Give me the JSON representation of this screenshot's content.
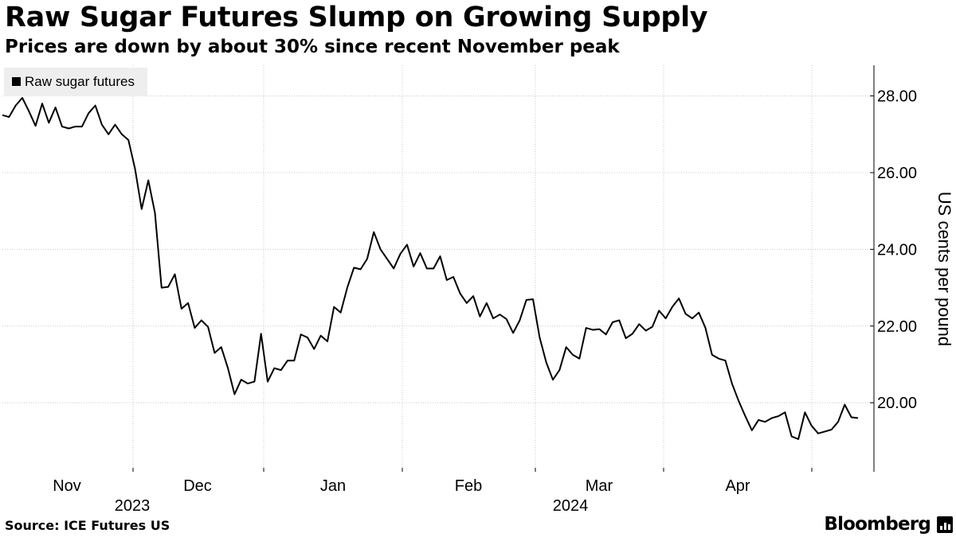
{
  "header": {
    "title": "Raw Sugar Futures Slump on Growing Supply",
    "subtitle": "Prices are down by about 30% since recent November peak"
  },
  "footer": {
    "source": "Source: ICE Futures US",
    "brand": "Bloomberg"
  },
  "chart_data": {
    "type": "line",
    "title": "Raw Sugar Futures Slump on Growing Supply",
    "subtitle": "Prices are down by about 30% since recent November peak",
    "xlabel": "",
    "ylabel": "US cents per pound",
    "yaxis_side": "right",
    "ylim": [
      18.2,
      28.8
    ],
    "yticks": [
      20.0,
      22.0,
      24.0,
      26.0,
      28.0
    ],
    "ytick_labels": [
      "20.00",
      "22.00",
      "24.00",
      "26.00",
      "28.00"
    ],
    "grid": true,
    "legend_position": "top-left",
    "x_range": [
      "2023-10-31",
      "2024-04-25"
    ],
    "month_ticks": [
      "Nov",
      "Dec",
      "Jan",
      "Feb",
      "Mar",
      "Apr"
    ],
    "year_labels": [
      "2023",
      "2024"
    ],
    "series": [
      {
        "name": "Raw sugar futures",
        "color": "#000000",
        "values": [
          27.5,
          27.45,
          27.75,
          27.95,
          27.6,
          27.22,
          27.8,
          27.3,
          27.7,
          27.2,
          27.15,
          27.2,
          27.2,
          27.55,
          27.75,
          27.25,
          27.0,
          27.25,
          27.0,
          26.85,
          26.1,
          25.05,
          25.8,
          24.95,
          23.0,
          23.02,
          23.35,
          22.45,
          22.6,
          21.95,
          22.15,
          21.98,
          21.3,
          21.45,
          20.9,
          20.22,
          20.6,
          20.5,
          20.55,
          21.8,
          20.55,
          20.9,
          20.85,
          21.1,
          21.1,
          21.78,
          21.7,
          21.4,
          21.75,
          21.6,
          22.5,
          22.35,
          23.0,
          23.52,
          23.48,
          23.75,
          24.45,
          24.0,
          23.75,
          23.5,
          23.88,
          24.12,
          23.55,
          23.9,
          23.5,
          23.5,
          23.82,
          23.2,
          23.28,
          22.85,
          22.6,
          22.78,
          22.25,
          22.6,
          22.2,
          22.3,
          22.18,
          21.82,
          22.15,
          22.68,
          22.7,
          21.7,
          21.05,
          20.6,
          20.85,
          21.45,
          21.25,
          21.15,
          21.95,
          21.9,
          21.92,
          21.78,
          22.1,
          22.15,
          21.68,
          21.8,
          22.05,
          21.88,
          21.98,
          22.4,
          22.2,
          22.5,
          22.72,
          22.32,
          22.2,
          22.35,
          21.95,
          21.25,
          21.15,
          21.1,
          20.5,
          20.05,
          19.65,
          19.28,
          19.55,
          19.5,
          19.6,
          19.65,
          19.75,
          19.12,
          19.05,
          19.75,
          19.4,
          19.2,
          19.25,
          19.3,
          19.5,
          19.95,
          19.62,
          19.6
        ]
      }
    ]
  }
}
